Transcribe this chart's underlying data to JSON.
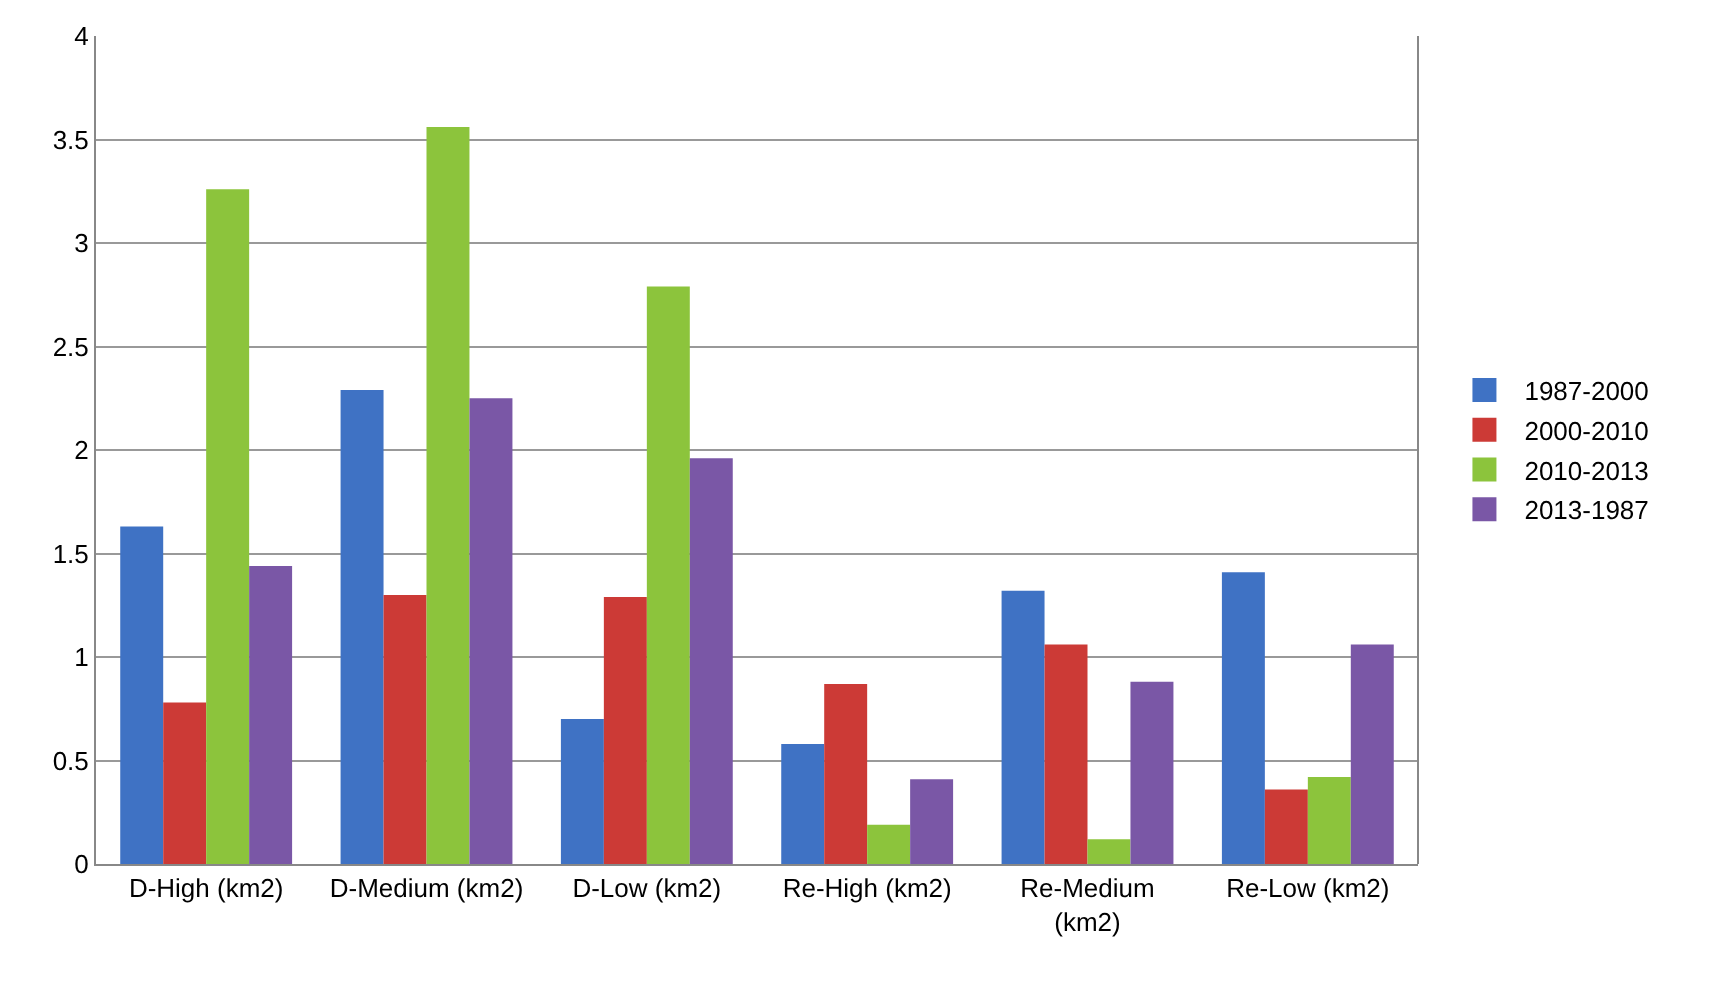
{
  "chart_data": {
    "type": "bar",
    "categories": [
      "D-High (km2)",
      "D-Medium (km2)",
      "D-Low (km2)",
      "Re-High (km2)",
      "Re-Medium (km2)",
      "Re-Low (km2)"
    ],
    "series": [
      {
        "name": "1987-2000",
        "color": "#3f72c4",
        "values": [
          1.63,
          2.29,
          0.7,
          0.58,
          1.32,
          1.41
        ]
      },
      {
        "name": "2000-2010",
        "color": "#cc3a36",
        "values": [
          0.78,
          1.3,
          1.29,
          0.87,
          1.06,
          0.36
        ]
      },
      {
        "name": "2010-2013",
        "color": "#8cc43c",
        "values": [
          3.26,
          3.56,
          2.79,
          0.19,
          0.12,
          0.42
        ]
      },
      {
        "name": "2013-1987",
        "color": "#7a57a6",
        "values": [
          1.44,
          2.25,
          1.96,
          0.41,
          0.88,
          1.06
        ]
      }
    ],
    "ylim": [
      0,
      4
    ],
    "yticks": [
      0,
      0.5,
      1,
      1.5,
      2,
      2.5,
      3,
      3.5,
      4
    ],
    "grid": "y",
    "legend": "right"
  }
}
